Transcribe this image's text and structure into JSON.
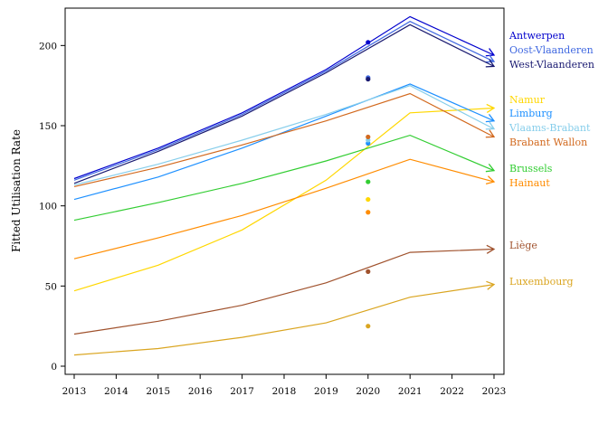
{
  "chart_data": {
    "type": "line",
    "title": "",
    "xlabel": "",
    "ylabel": "Fitted Utilisation Rate",
    "x": [
      2013,
      2014,
      2015,
      2016,
      2017,
      2018,
      2019,
      2020,
      2021,
      2022,
      2023
    ],
    "xlim": [
      2013,
      2023
    ],
    "ylim": [
      0,
      225
    ],
    "yticks": [
      0,
      50,
      100,
      150,
      200
    ],
    "xticks": [
      "2013",
      "2014",
      "2015",
      "2016",
      "2017",
      "2018",
      "2019",
      "2020",
      "2021",
      "2022",
      "2023"
    ],
    "grid": false,
    "legend": "direct labels at right end of each line",
    "observed_year": 2020,
    "series": [
      {
        "name": "Antwerpen",
        "color": "#0000CD",
        "points": [
          [
            2013,
            117
          ],
          [
            2015,
            136
          ],
          [
            2017,
            158
          ],
          [
            2019,
            185
          ],
          [
            2021,
            218
          ],
          [
            2023,
            194
          ]
        ],
        "observed": 202
      },
      {
        "name": "Oost-Vlaanderen",
        "color": "#4169E1",
        "points": [
          [
            2013,
            116
          ],
          [
            2015,
            135
          ],
          [
            2017,
            157
          ],
          [
            2019,
            184
          ],
          [
            2021,
            215
          ],
          [
            2023,
            190
          ]
        ],
        "observed": 180
      },
      {
        "name": "West-Vlaanderen",
        "color": "#191970",
        "points": [
          [
            2013,
            114
          ],
          [
            2015,
            134
          ],
          [
            2017,
            156
          ],
          [
            2019,
            183
          ],
          [
            2021,
            213
          ],
          [
            2023,
            187
          ]
        ],
        "observed": 179
      },
      {
        "name": "Namur",
        "color": "#FFD700",
        "points": [
          [
            2013,
            47
          ],
          [
            2015,
            63
          ],
          [
            2017,
            85
          ],
          [
            2019,
            116
          ],
          [
            2021,
            158
          ],
          [
            2023,
            161
          ]
        ],
        "observed": 104
      },
      {
        "name": "Limburg",
        "color": "#1E90FF",
        "points": [
          [
            2013,
            104
          ],
          [
            2015,
            118
          ],
          [
            2017,
            136
          ],
          [
            2019,
            156
          ],
          [
            2021,
            176
          ],
          [
            2023,
            153
          ]
        ],
        "observed": 139
      },
      {
        "name": "Vlaams-Brabant",
        "color": "#87CEEB",
        "points": [
          [
            2013,
            113
          ],
          [
            2015,
            126
          ],
          [
            2017,
            141
          ],
          [
            2019,
            157
          ],
          [
            2021,
            175
          ],
          [
            2023,
            148
          ]
        ],
        "observed": 141
      },
      {
        "name": "Brabant Wallon",
        "color": "#D2691E",
        "points": [
          [
            2013,
            112
          ],
          [
            2015,
            124
          ],
          [
            2017,
            138
          ],
          [
            2019,
            153
          ],
          [
            2021,
            170
          ],
          [
            2023,
            143
          ]
        ],
        "observed": 143
      },
      {
        "name": "Brussels",
        "color": "#32CD32",
        "points": [
          [
            2013,
            91
          ],
          [
            2015,
            102
          ],
          [
            2017,
            114
          ],
          [
            2019,
            128
          ],
          [
            2021,
            144
          ],
          [
            2023,
            122
          ]
        ],
        "observed": 115
      },
      {
        "name": "Hainaut",
        "color": "#FF8C00",
        "points": [
          [
            2013,
            67
          ],
          [
            2015,
            80
          ],
          [
            2017,
            94
          ],
          [
            2019,
            111
          ],
          [
            2021,
            129
          ],
          [
            2023,
            115
          ]
        ],
        "observed": 96
      },
      {
        "name": "Liège",
        "color": "#A0522D",
        "points": [
          [
            2013,
            20
          ],
          [
            2015,
            28
          ],
          [
            2017,
            38
          ],
          [
            2019,
            52
          ],
          [
            2021,
            71
          ],
          [
            2023,
            73
          ]
        ],
        "observed": 59
      },
      {
        "name": "Luxembourg",
        "color": "#DAA520",
        "points": [
          [
            2013,
            7
          ],
          [
            2015,
            11
          ],
          [
            2017,
            18
          ],
          [
            2019,
            27
          ],
          [
            2021,
            43
          ],
          [
            2023,
            51
          ]
        ],
        "observed": 25
      }
    ]
  }
}
